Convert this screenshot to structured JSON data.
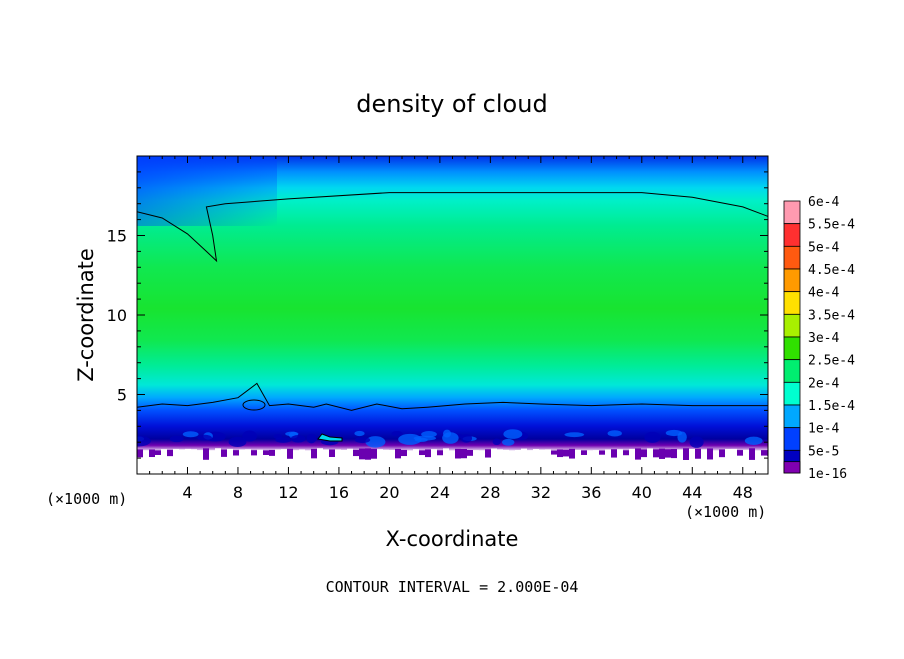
{
  "chart_data": {
    "type": "heatmap",
    "title": "density of cloud",
    "xlabel": "X-coordinate",
    "ylabel": "Z-coordinate",
    "x_unit_left": "(×1000 m)",
    "x_unit_right": "(×1000 m)",
    "footer": "CONTOUR INTERVAL = 2.000E-04",
    "xlim": [
      0,
      50
    ],
    "ylim": [
      0,
      20
    ],
    "x_ticks": [
      4,
      8,
      12,
      16,
      20,
      24,
      28,
      32,
      36,
      40,
      44,
      48
    ],
    "y_ticks": [
      5,
      10,
      15
    ],
    "contour_interval": 0.0002,
    "colorbar": {
      "labels": [
        "6e-4",
        "5.5e-4",
        "5e-4",
        "4.5e-4",
        "4e-4",
        "3.5e-4",
        "3e-4",
        "2.5e-4",
        "2e-4",
        "1.5e-4",
        "1e-4",
        "5e-5",
        "1e-16"
      ],
      "colors": [
        "#ff9ab0",
        "#ff3030",
        "#ff5a10",
        "#ff9a00",
        "#ffe000",
        "#a8f000",
        "#30e000",
        "#00ee70",
        "#00ffd0",
        "#00a8ff",
        "#0040ff",
        "#0000c0",
        "#8000b0"
      ]
    },
    "contour_2e-4": {
      "upper": [
        [
          0,
          16.5
        ],
        [
          2,
          16.1
        ],
        [
          4,
          15.1
        ],
        [
          5.5,
          14.0
        ],
        [
          6.3,
          13.4
        ],
        [
          6.0,
          15.0
        ],
        [
          5.5,
          16.8
        ],
        [
          7,
          17.0
        ],
        [
          12,
          17.3
        ],
        [
          20,
          17.7
        ],
        [
          30,
          17.7
        ],
        [
          40,
          17.7
        ],
        [
          44,
          17.4
        ],
        [
          48,
          16.8
        ],
        [
          50,
          16.2
        ]
      ],
      "lower": [
        [
          0,
          4.2
        ],
        [
          2,
          4.4
        ],
        [
          4,
          4.3
        ],
        [
          6,
          4.5
        ],
        [
          8,
          4.8
        ],
        [
          9.5,
          5.7
        ],
        [
          10.5,
          4.3
        ],
        [
          12,
          4.4
        ],
        [
          14,
          4.2
        ],
        [
          15,
          4.4
        ],
        [
          17,
          4.0
        ],
        [
          19,
          4.4
        ],
        [
          21,
          4.1
        ],
        [
          23,
          4.2
        ],
        [
          26,
          4.4
        ],
        [
          29,
          4.5
        ],
        [
          32,
          4.4
        ],
        [
          36,
          4.3
        ],
        [
          40,
          4.4
        ],
        [
          44,
          4.3
        ],
        [
          48,
          4.3
        ],
        [
          50,
          4.3
        ]
      ]
    }
  }
}
